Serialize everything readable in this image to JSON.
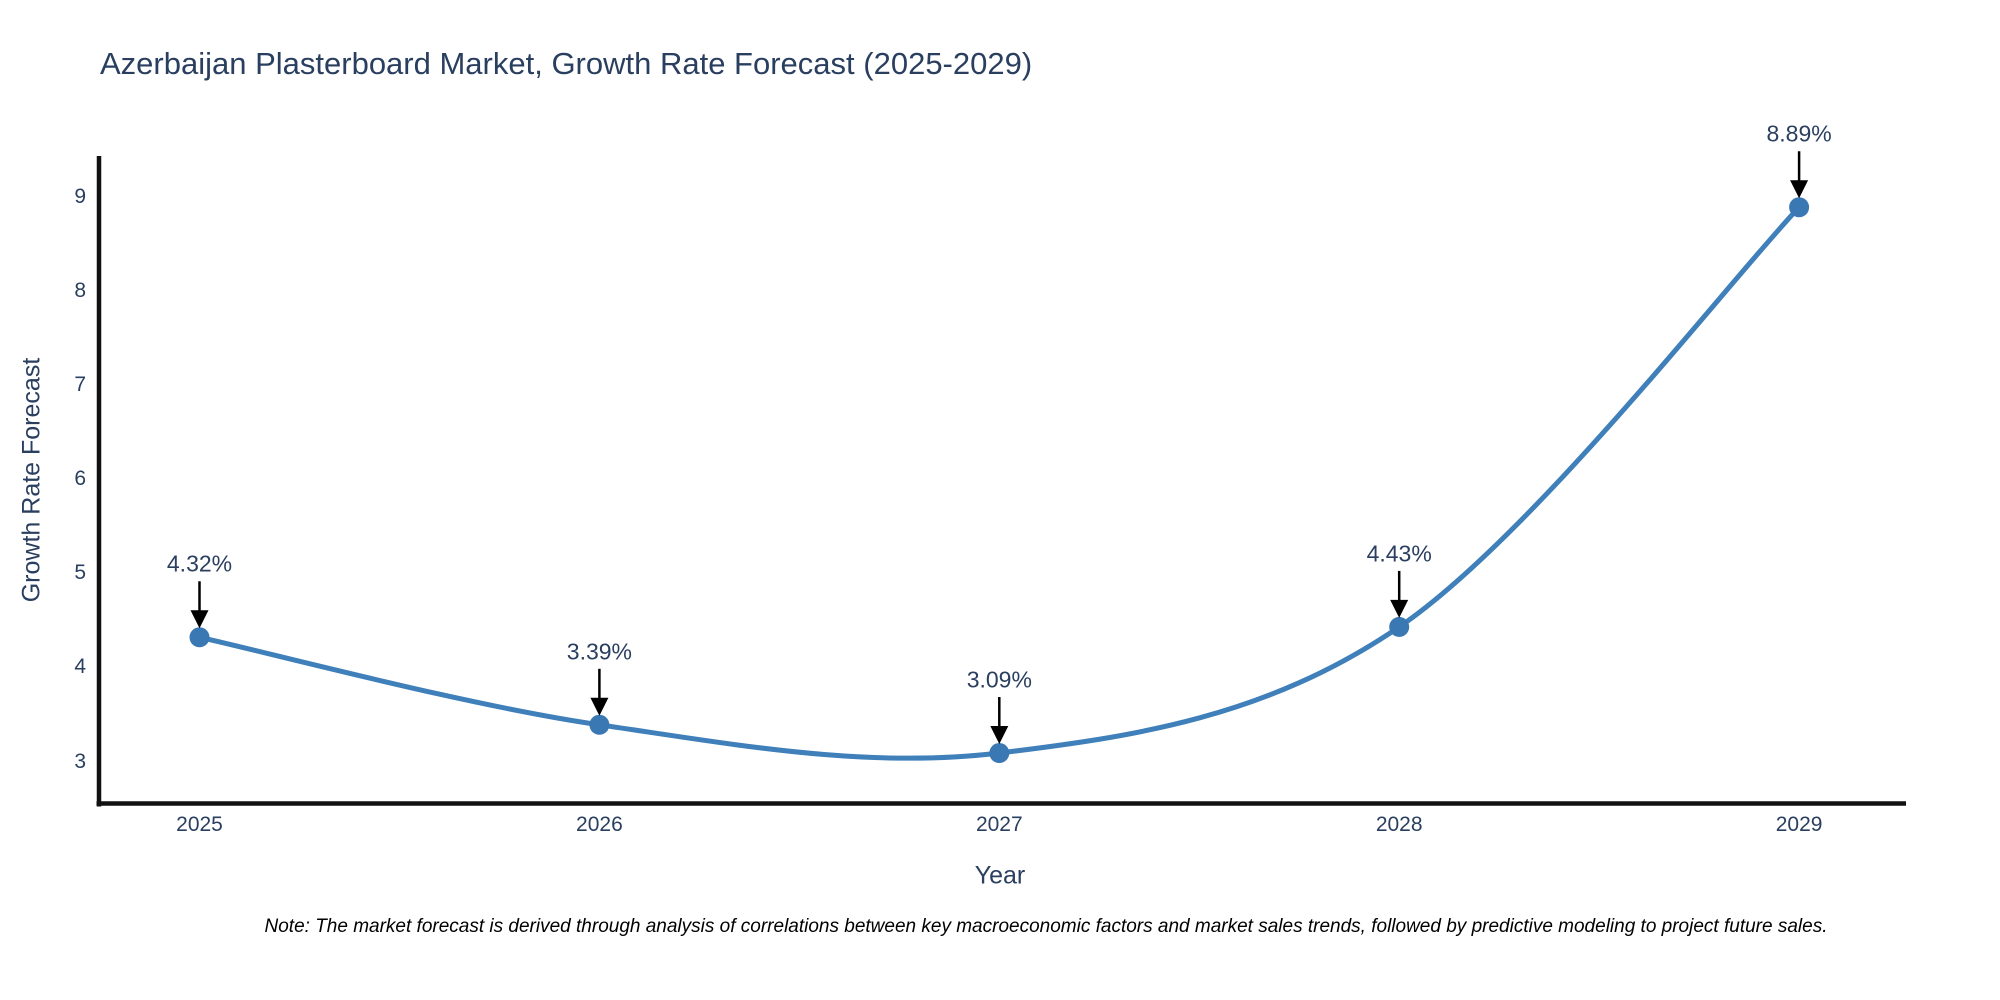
{
  "page": {
    "background": "#ffffff"
  },
  "chart_data": {
    "type": "line",
    "title": "Azerbaijan Plasterboard Market, Growth Rate Forecast (2025-2029)",
    "xlabel": "Year",
    "ylabel": "Growth Rate Forecast",
    "x": [
      2025,
      2026,
      2027,
      2028,
      2029
    ],
    "values": [
      4.32,
      3.39,
      3.09,
      4.43,
      8.89
    ],
    "point_labels": [
      "4.32%",
      "3.39%",
      "3.09%",
      "4.43%",
      "8.89%"
    ],
    "xticks": [
      "2025",
      "2026",
      "2027",
      "2028",
      "2029"
    ],
    "yticks": [
      3,
      4,
      5,
      6,
      7,
      8,
      9
    ],
    "ylim": [
      2.55,
      9.55
    ],
    "line_shape": "spline",
    "grid": false,
    "legend": "none",
    "colors": {
      "line": "#3f7fba",
      "marker": "#3a78b4",
      "text": "#2a3f5f",
      "axis": "#111111",
      "arrow": "#000000"
    }
  },
  "note": "Note: The market forecast is derived through analysis of correlations between key macroeconomic factors and market sales trends, followed by predictive modeling to project future sales."
}
